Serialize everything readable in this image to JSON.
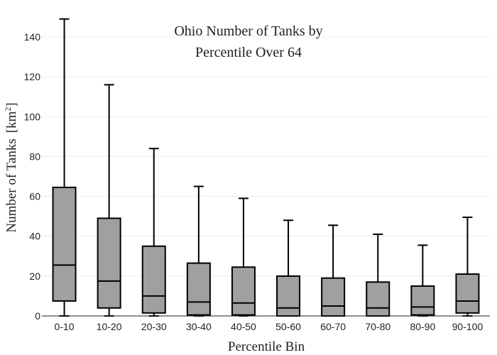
{
  "chart_data": {
    "type": "box",
    "title_lines": [
      "Ohio Number of Tanks by",
      "Percentile Over 64"
    ],
    "xlabel": "Percentile Bin",
    "ylabel": "Number of Tanks",
    "ylabel_unit_base": "[km",
    "ylabel_unit_exp": "2",
    "ylabel_unit_close": "]",
    "ylim": [
      0,
      150
    ],
    "yticks": [
      0,
      20,
      40,
      60,
      80,
      100,
      120,
      140
    ],
    "grid": true,
    "categories": [
      "0-10",
      "10-20",
      "20-30",
      "30-40",
      "40-50",
      "50-60",
      "60-70",
      "70-80",
      "80-90",
      "90-100"
    ],
    "boxes": [
      {
        "min": 0,
        "q1": 7.5,
        "median": 25.5,
        "q3": 64.5,
        "max": 149
      },
      {
        "min": 0,
        "q1": 4,
        "median": 17.5,
        "q3": 49,
        "max": 116
      },
      {
        "min": 0,
        "q1": 1.5,
        "median": 10,
        "q3": 35,
        "max": 84
      },
      {
        "min": 0,
        "q1": 0.5,
        "median": 7,
        "q3": 26.5,
        "max": 65
      },
      {
        "min": 0,
        "q1": 0.5,
        "median": 6.5,
        "q3": 24.5,
        "max": 59
      },
      {
        "min": 0,
        "q1": 0,
        "median": 4,
        "q3": 20,
        "max": 48
      },
      {
        "min": 0,
        "q1": 0,
        "median": 5,
        "q3": 19,
        "max": 45.5
      },
      {
        "min": 0,
        "q1": 0,
        "median": 4,
        "q3": 17,
        "max": 41
      },
      {
        "min": 0,
        "q1": 0.5,
        "median": 4.5,
        "q3": 15,
        "max": 35.5
      },
      {
        "min": 0,
        "q1": 1.5,
        "median": 7.5,
        "q3": 21,
        "max": 49.5
      }
    ]
  }
}
